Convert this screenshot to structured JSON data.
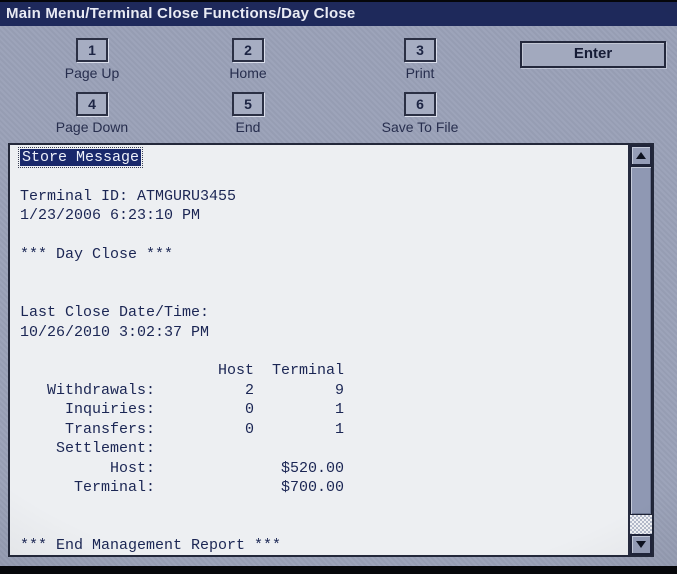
{
  "title_bar": {
    "title": "Main Menu/Terminal Close Functions/Day Close"
  },
  "keypad": {
    "keys": [
      {
        "number": "1",
        "label": "Page Up"
      },
      {
        "number": "2",
        "label": "Home"
      },
      {
        "number": "3",
        "label": "Print"
      },
      {
        "number": "4",
        "label": "Page Down"
      },
      {
        "number": "5",
        "label": "End"
      },
      {
        "number": "6",
        "label": "Save To File"
      }
    ],
    "enter_label": "Enter"
  },
  "report": {
    "selected_line": "Store Message",
    "header": {
      "terminal_id_line": "Terminal ID: ATMGURU3455",
      "report_datetime": "1/23/2006 6:23:10 PM"
    },
    "section_title": "*** Day Close ***",
    "last_close": {
      "label": "Last Close Date/Time:",
      "value": "10/26/2010 3:02:37 PM"
    },
    "counts_table": {
      "columns": [
        "Host",
        "Terminal"
      ],
      "rows": [
        {
          "label": "Withdrawals:",
          "host": "2",
          "terminal": "9"
        },
        {
          "label": "Inquiries:",
          "host": "0",
          "terminal": "1"
        },
        {
          "label": "Transfers:",
          "host": "0",
          "terminal": "1"
        }
      ]
    },
    "settlement": {
      "label": "Settlement:",
      "rows": [
        {
          "label": "Host:",
          "amount": "$520.00"
        },
        {
          "label": "Terminal:",
          "amount": "$700.00"
        }
      ]
    },
    "footer_line": "*** End Management Report ***"
  },
  "colors": {
    "title_bar_bg": "#1e295b",
    "panel_bg": "#9ba2b8",
    "content_bg": "#edeff2",
    "report_text": "#1b2654",
    "selection_bg": "#19286b",
    "selection_text": "#eef1fa"
  }
}
